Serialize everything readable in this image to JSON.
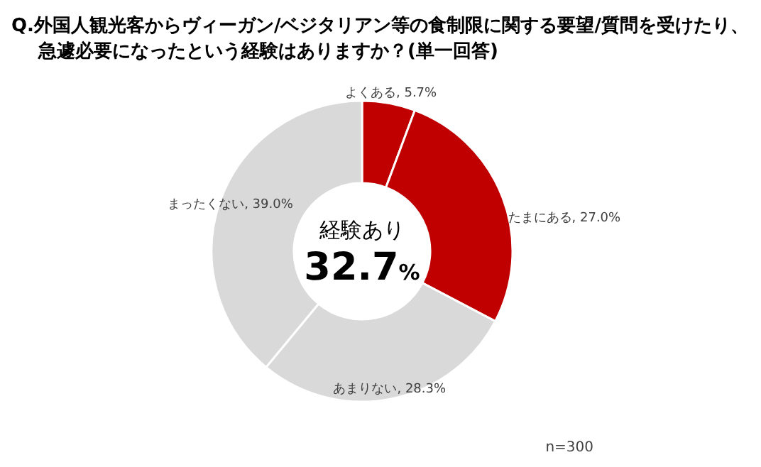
{
  "chart_data": {
    "type": "donut",
    "title": "Q.外国人観光客からヴィーガン/ベジタリアン等の食制限に関する要望/質問を受けたり、急遽必要になったという経験はありますか？(単一回答)",
    "categories": [
      "よくある",
      "たまにある",
      "あまりない",
      "まったくない"
    ],
    "values": [
      5.7,
      27.0,
      28.3,
      39.0
    ],
    "colors": [
      "#c00000",
      "#c00000",
      "#d9d9d9",
      "#d9d9d9"
    ],
    "value_labels": [
      ", 5.7%",
      ", 27.0%",
      ", 28.3%",
      ", 39.0%"
    ],
    "annotations": [
      "経験あり",
      "32.7%",
      "n=300"
    ]
  }
}
